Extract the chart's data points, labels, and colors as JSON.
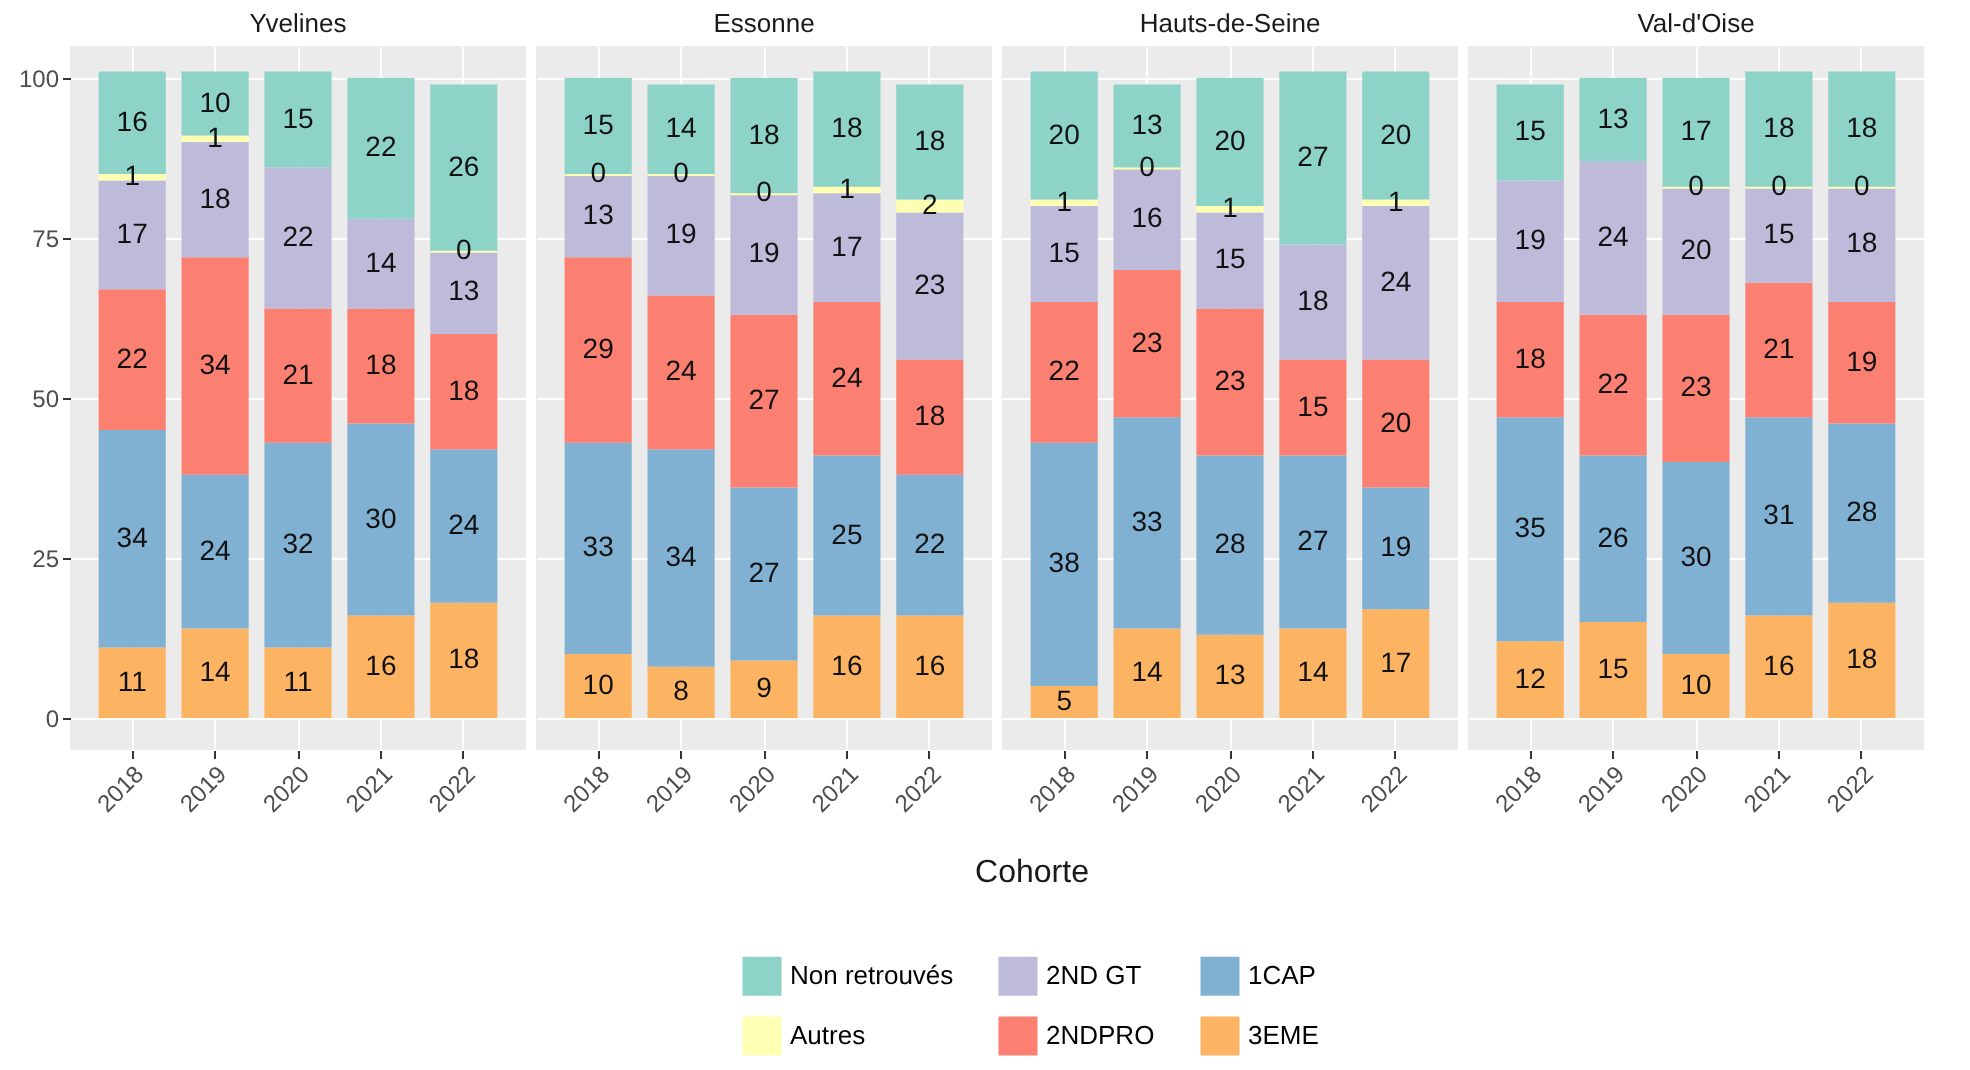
{
  "chart_data": [
    {
      "type": "bar",
      "title": "Yvelines",
      "categories": [
        "2018",
        "2019",
        "2020",
        "2021",
        "2022"
      ],
      "stacked": true,
      "data_labels": true,
      "grid": true,
      "legend": "bottom",
      "ylim": [
        -5,
        105
      ],
      "yticks": [
        0,
        25,
        50,
        75,
        100
      ],
      "series": [
        {
          "name": "3EME",
          "color": "#fdb462",
          "values": [
            11,
            14,
            11,
            16,
            18
          ]
        },
        {
          "name": "1CAP",
          "color": "#80b1d3",
          "values": [
            34,
            24,
            32,
            30,
            24
          ]
        },
        {
          "name": "2NDPRO",
          "color": "#fb8072",
          "values": [
            22,
            34,
            21,
            18,
            18
          ]
        },
        {
          "name": "2ND GT",
          "color": "#bebada",
          "values": [
            17,
            18,
            22,
            14,
            13
          ]
        },
        {
          "name": "Autres",
          "color": "#ffffb3",
          "values": [
            1,
            1,
            null,
            null,
            0
          ]
        },
        {
          "name": "Non retrouvés",
          "color": "#8dd3c7",
          "values": [
            16,
            10,
            15,
            22,
            26
          ]
        }
      ]
    },
    {
      "type": "bar",
      "title": "Essonne",
      "xlabel": "Cohorte",
      "categories": [
        "2018",
        "2019",
        "2020",
        "2021",
        "2022"
      ],
      "stacked": true,
      "data_labels": true,
      "grid": true,
      "legend": "bottom",
      "tick_labels": "x",
      "ylim": [
        -5,
        105
      ],
      "yticks": [
        0,
        25,
        50,
        75,
        100
      ],
      "series": [
        {
          "name": "3EME",
          "color": "#fdb462",
          "values": [
            10,
            8,
            9,
            16,
            16
          ]
        },
        {
          "name": "1CAP",
          "color": "#80b1d3",
          "values": [
            33,
            34,
            27,
            25,
            22
          ]
        },
        {
          "name": "2NDPRO",
          "color": "#fb8072",
          "values": [
            29,
            24,
            27,
            24,
            18
          ]
        },
        {
          "name": "2ND GT",
          "color": "#bebada",
          "values": [
            13,
            19,
            19,
            17,
            23
          ]
        },
        {
          "name": "Autres",
          "color": "#ffffb3",
          "values": [
            0,
            0,
            0,
            1,
            2
          ]
        },
        {
          "name": "Non retrouvés",
          "color": "#8dd3c7",
          "values": [
            15,
            14,
            18,
            18,
            18
          ]
        }
      ]
    },
    {
      "type": "bar",
      "title": "Hauts-de-Seine",
      "categories": [
        "2018",
        "2019",
        "2020",
        "2021",
        "2022"
      ],
      "stacked": true,
      "data_labels": true,
      "grid": true,
      "legend": "bottom",
      "tick_labels": "x",
      "ylim": [
        -5,
        105
      ],
      "yticks": [
        0,
        25,
        50,
        75,
        100
      ],
      "series": [
        {
          "name": "3EME",
          "color": "#fdb462",
          "values": [
            5,
            14,
            13,
            14,
            17
          ]
        },
        {
          "name": "1CAP",
          "color": "#80b1d3",
          "values": [
            38,
            33,
            28,
            27,
            19
          ]
        },
        {
          "name": "2NDPRO",
          "color": "#fb8072",
          "values": [
            22,
            23,
            23,
            15,
            20
          ]
        },
        {
          "name": "2ND GT",
          "color": "#bebada",
          "values": [
            15,
            16,
            15,
            18,
            24
          ]
        },
        {
          "name": "Autres",
          "color": "#ffffb3",
          "values": [
            1,
            0,
            1,
            null,
            1
          ]
        },
        {
          "name": "Non retrouvés",
          "color": "#8dd3c7",
          "values": [
            20,
            13,
            20,
            27,
            20
          ]
        }
      ]
    },
    {
      "type": "bar",
      "title": "Val-d'Oise",
      "categories": [
        "2018",
        "2019",
        "2020",
        "2021",
        "2022"
      ],
      "stacked": true,
      "data_labels": true,
      "grid": true,
      "legend": "bottom",
      "tick_labels": "x",
      "ylim": [
        -5,
        105
      ],
      "yticks": [
        0,
        25,
        50,
        75,
        100
      ],
      "series": [
        {
          "name": "3EME",
          "color": "#fdb462",
          "values": [
            12,
            15,
            10,
            16,
            18
          ]
        },
        {
          "name": "1CAP",
          "color": "#80b1d3",
          "values": [
            35,
            26,
            30,
            31,
            28
          ]
        },
        {
          "name": "2NDPRO",
          "color": "#fb8072",
          "values": [
            18,
            22,
            23,
            21,
            19
          ]
        },
        {
          "name": "2ND GT",
          "color": "#bebada",
          "values": [
            19,
            24,
            20,
            15,
            18
          ]
        },
        {
          "name": "Autres",
          "color": "#ffffb3",
          "values": [
            null,
            null,
            0,
            0,
            0
          ]
        },
        {
          "name": "Non retrouvés",
          "color": "#8dd3c7",
          "values": [
            15,
            13,
            17,
            18,
            18
          ]
        }
      ]
    }
  ]
}
